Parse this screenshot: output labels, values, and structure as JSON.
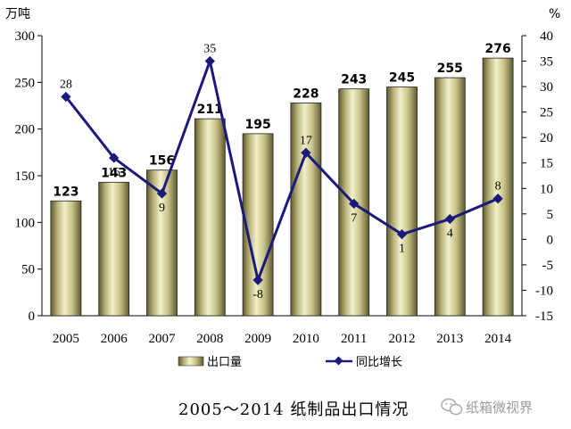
{
  "chart_data": {
    "type": "bar",
    "title": "2005～2014 纸制品出口情况",
    "categories": [
      "2005",
      "2006",
      "2007",
      "2008",
      "2009",
      "2010",
      "2011",
      "2012",
      "2013",
      "2014"
    ],
    "series": [
      {
        "name": "出口量",
        "type": "bar",
        "axis": "left",
        "values": [
          123,
          143,
          156,
          211,
          195,
          228,
          243,
          245,
          255,
          276
        ]
      },
      {
        "name": "同比增长",
        "type": "line",
        "axis": "right",
        "values": [
          28,
          16,
          9,
          35,
          -8,
          17,
          7,
          1,
          4,
          8
        ]
      }
    ],
    "ylabel": "万吨",
    "y2label": "%",
    "ylim": [
      0,
      300
    ],
    "y2lim": [
      -15,
      40
    ],
    "yticks": [
      0,
      50,
      100,
      150,
      200,
      250,
      300
    ],
    "y2ticks": [
      -15,
      -10,
      -5,
      0,
      5,
      10,
      15,
      20,
      25,
      30,
      35,
      40
    ],
    "legend": "bottom",
    "grid": false,
    "colors": {
      "bar_light": "#f2f0c8",
      "bar_mid": "#c9c38a",
      "bar_dark": "#5f5a2e",
      "line": "#1a1a7a"
    }
  },
  "watermark": {
    "text": "纸箱微视界",
    "icon": "wechat-icon"
  }
}
